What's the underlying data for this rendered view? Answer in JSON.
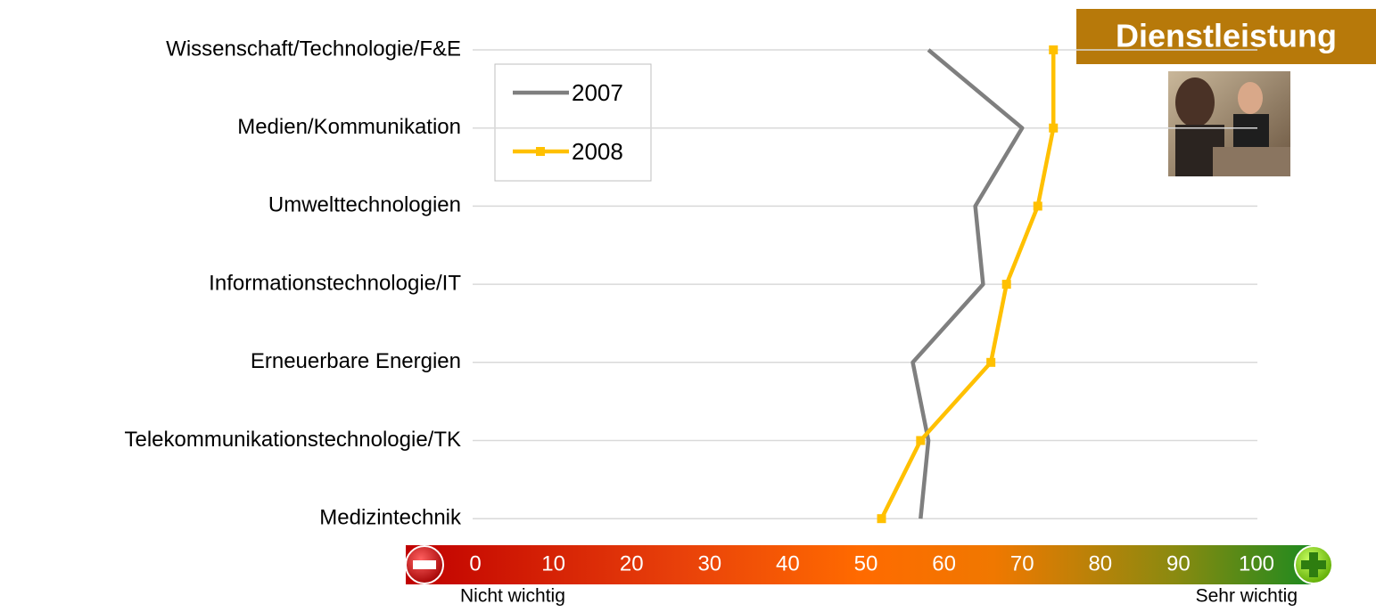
{
  "chart_data": {
    "type": "line",
    "badge": "Dienstleistung",
    "x_label_left": "Nicht wichtig",
    "x_label_right": "Sehr wichtig",
    "categories": [
      "Wissenschaft/Technologie/F&E",
      "Medien/Kommunikation",
      "Umwelttechnologien",
      "Informationstechnologie/IT",
      "Erneuerbare Energien",
      "Telekommunikationstechnologie/TK",
      "Medizintechnik"
    ],
    "series": [
      {
        "name": "2007",
        "color": "#7f7f7f",
        "values": [
          58,
          70,
          64,
          65,
          56,
          58,
          57
        ]
      },
      {
        "name": "2008",
        "color": "#ffc000",
        "values": [
          74,
          74,
          72,
          68,
          66,
          57,
          52
        ]
      }
    ],
    "xlim": [
      0,
      100
    ],
    "xticks": [
      0,
      10,
      20,
      30,
      40,
      50,
      60,
      70,
      80,
      90,
      100
    ]
  }
}
